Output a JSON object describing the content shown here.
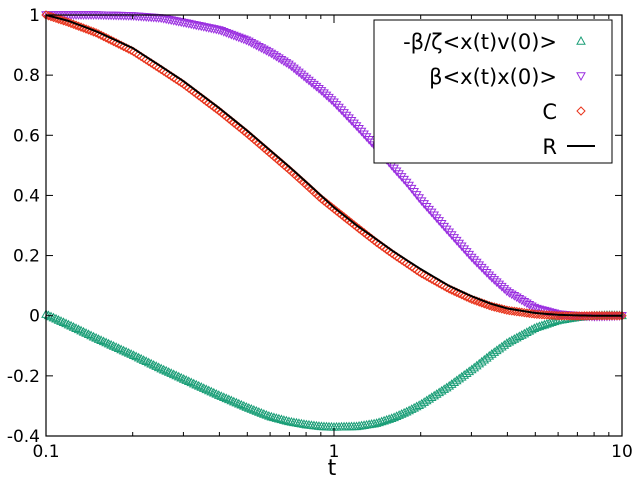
{
  "chart_data": {
    "type": "scatter",
    "title": "",
    "xlabel": "t",
    "ylabel": "",
    "x_scale": "log",
    "xlim": [
      0.1,
      10
    ],
    "ylim": [
      -0.4,
      1.0
    ],
    "x_ticks": [
      {
        "value": 0.1,
        "label": "0.1"
      },
      {
        "value": 1,
        "label": "1"
      },
      {
        "value": 10,
        "label": "10"
      }
    ],
    "y_ticks": [
      {
        "value": -0.4,
        "label": "-0.4"
      },
      {
        "value": -0.2,
        "label": "-0.2"
      },
      {
        "value": 0,
        "label": "0"
      },
      {
        "value": 0.2,
        "label": "0.2"
      },
      {
        "value": 0.4,
        "label": "0.4"
      },
      {
        "value": 0.6,
        "label": "0.6"
      },
      {
        "value": 0.8,
        "label": "0.8"
      },
      {
        "value": 1.0,
        "label": "1"
      }
    ],
    "grid": false,
    "legend_position": "top-right",
    "series": [
      {
        "name": "-β/ζ<x(t)v(0)>",
        "marker": "triangle-up",
        "color": "#1a9e77",
        "x": [
          0.1,
          0.12,
          0.15,
          0.2,
          0.25,
          0.3,
          0.4,
          0.5,
          0.6,
          0.7,
          0.8,
          0.9,
          1.0,
          1.2,
          1.4,
          1.6,
          1.8,
          2.0,
          2.5,
          3.0,
          3.5,
          4.0,
          5.0,
          6.0,
          7.0,
          8.0,
          9.0,
          10.0
        ],
        "y": [
          0.005,
          -0.03,
          -0.075,
          -0.13,
          -0.175,
          -0.21,
          -0.265,
          -0.305,
          -0.335,
          -0.352,
          -0.362,
          -0.368,
          -0.37,
          -0.368,
          -0.358,
          -0.34,
          -0.318,
          -0.295,
          -0.235,
          -0.18,
          -0.13,
          -0.09,
          -0.04,
          -0.015,
          -0.005,
          0.0,
          0.002,
          0.001
        ]
      },
      {
        "name": "β<x(t)x(0)>",
        "marker": "triangle-down",
        "color": "#9b30e0",
        "x": [
          0.1,
          0.12,
          0.15,
          0.2,
          0.25,
          0.3,
          0.4,
          0.5,
          0.6,
          0.7,
          0.8,
          0.9,
          1.0,
          1.2,
          1.4,
          1.6,
          1.8,
          2.0,
          2.5,
          3.0,
          3.5,
          4.0,
          5.0,
          6.0,
          7.0,
          8.0,
          9.0,
          10.0
        ],
        "y": [
          1.0,
          1.0,
          1.0,
          0.997,
          0.99,
          0.975,
          0.95,
          0.915,
          0.875,
          0.835,
          0.79,
          0.75,
          0.71,
          0.63,
          0.56,
          0.495,
          0.44,
          0.385,
          0.28,
          0.195,
          0.13,
          0.08,
          0.025,
          0.005,
          0.0,
          -0.003,
          -0.002,
          0.0
        ]
      },
      {
        "name": "C",
        "marker": "diamond",
        "color": "#e8341c",
        "x": [
          0.1,
          0.12,
          0.15,
          0.2,
          0.25,
          0.3,
          0.4,
          0.5,
          0.6,
          0.7,
          0.8,
          0.9,
          1.0,
          1.2,
          1.4,
          1.6,
          1.8,
          2.0,
          2.5,
          3.0,
          3.5,
          4.0,
          5.0,
          6.0,
          7.0,
          8.0,
          9.0,
          10.0
        ],
        "y": [
          1.0,
          0.975,
          0.94,
          0.88,
          0.82,
          0.77,
          0.68,
          0.605,
          0.54,
          0.485,
          0.435,
          0.39,
          0.355,
          0.295,
          0.245,
          0.205,
          0.172,
          0.142,
          0.09,
          0.055,
          0.032,
          0.018,
          0.005,
          0.0,
          -0.001,
          0.0,
          0.0,
          0.0
        ]
      },
      {
        "name": "R",
        "marker": "line",
        "color": "#000000",
        "x": [
          0.1,
          0.12,
          0.15,
          0.2,
          0.25,
          0.3,
          0.4,
          0.5,
          0.6,
          0.7,
          0.8,
          0.9,
          1.0,
          1.2,
          1.4,
          1.6,
          1.8,
          2.0,
          2.5,
          3.0,
          3.5,
          4.0,
          5.0,
          6.0,
          7.0,
          8.0,
          9.0,
          10.0
        ],
        "y": [
          1.0,
          0.98,
          0.945,
          0.89,
          0.83,
          0.78,
          0.69,
          0.615,
          0.55,
          0.495,
          0.445,
          0.4,
          0.36,
          0.3,
          0.255,
          0.215,
          0.183,
          0.155,
          0.1,
          0.065,
          0.04,
          0.024,
          0.009,
          0.003,
          0.001,
          0.0,
          0.0,
          0.0
        ]
      }
    ]
  }
}
